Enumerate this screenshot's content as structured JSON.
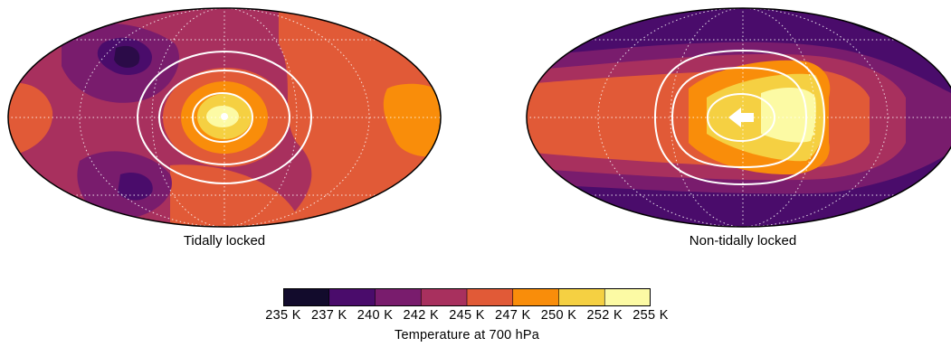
{
  "maps": [
    {
      "title": "Tidally locked"
    },
    {
      "title": "Non-tidally locked"
    }
  ],
  "colorbar": {
    "title": "Temperature at 700 hPa",
    "ticks": [
      "235 K",
      "237 K",
      "240 K",
      "242 K",
      "245 K",
      "247 K",
      "250 K",
      "252 K",
      "255 K"
    ],
    "colors": [
      "#120b2c",
      "#4a0c6b",
      "#791c6d",
      "#a8305e",
      "#e15a37",
      "#f98d0a",
      "#f5d042",
      "#fcfaa4"
    ]
  },
  "palette": {
    "p0": "#120b2c",
    "p1": "#4a0c6b",
    "p2": "#791c6d",
    "p3": "#a8305e",
    "p4": "#e15a37",
    "p5": "#f98d0a",
    "p6": "#f5d042",
    "p7": "#fcfaa4"
  }
}
